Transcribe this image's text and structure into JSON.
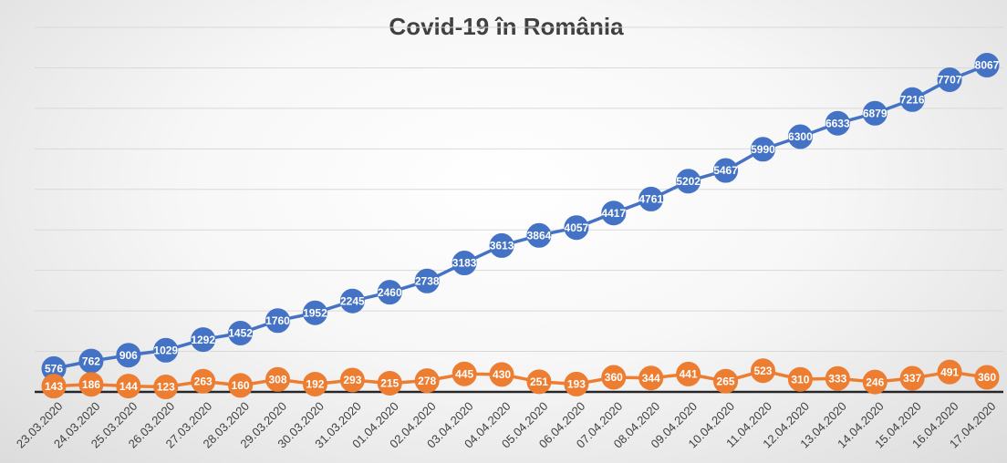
{
  "chart_data": {
    "type": "line",
    "title": "Covid-19 în România",
    "categories": [
      "23.03.2020",
      "24.03.2020",
      "25.03.2020",
      "26.03.2020",
      "27.03.2020",
      "28.03.2020",
      "29.03.2020",
      "30.03.2020",
      "31.03.2020",
      "01.04.2020",
      "02.04.2020",
      "03.04.2020",
      "04.04.2020",
      "05.04.2020",
      "06.04.2020",
      "07.04.2020",
      "08.04.2020",
      "09.04.2020",
      "10.04.2020",
      "11.04.2020",
      "12.04.2020",
      "13.04.2020",
      "14.04.2020",
      "15.04.2020",
      "16.04.2020",
      "17.04.2020"
    ],
    "series": [
      {
        "color": "#4472c4",
        "values": [
          576,
          762,
          906,
          1029,
          1292,
          1452,
          1760,
          1952,
          2245,
          2460,
          2738,
          3183,
          3613,
          3864,
          4057,
          4417,
          4761,
          5202,
          5467,
          5990,
          6300,
          6633,
          6879,
          7216,
          7707,
          8067
        ]
      },
      {
        "color": "#ed7d31",
        "values": [
          143,
          186,
          144,
          123,
          263,
          160,
          308,
          192,
          293,
          215,
          278,
          445,
          430,
          251,
          193,
          360,
          344,
          441,
          265,
          523,
          310,
          333,
          246,
          337,
          491,
          360
        ]
      }
    ],
    "ylim": [
      0,
      9000
    ],
    "grid": true,
    "legend": "none",
    "xlabel": "",
    "ylabel": ""
  }
}
